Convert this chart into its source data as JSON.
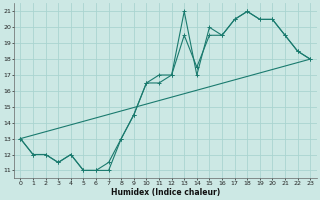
{
  "xlabel": "Humidex (Indice chaleur)",
  "bg_color": "#cce8e4",
  "grid_color": "#aad4d0",
  "line_color": "#1a7a6e",
  "xlim": [
    -0.5,
    23.5
  ],
  "ylim": [
    10.5,
    21.5
  ],
  "xticks": [
    0,
    1,
    2,
    3,
    4,
    5,
    6,
    7,
    8,
    9,
    10,
    11,
    12,
    13,
    14,
    15,
    16,
    17,
    18,
    19,
    20,
    21,
    22,
    23
  ],
  "yticks": [
    11,
    12,
    13,
    14,
    15,
    16,
    17,
    18,
    19,
    20,
    21
  ],
  "line1_x": [
    0,
    1,
    2,
    3,
    4,
    5,
    6,
    7,
    8,
    9,
    10,
    11,
    12,
    13,
    14,
    15,
    16,
    17,
    18,
    19,
    20,
    21,
    22,
    23
  ],
  "line1_y": [
    13.0,
    12.0,
    12.0,
    11.5,
    12.0,
    11.0,
    11.0,
    11.0,
    13.0,
    14.5,
    16.5,
    16.5,
    17.0,
    21.0,
    17.0,
    20.0,
    19.5,
    20.5,
    21.0,
    20.5,
    20.5,
    19.5,
    18.5,
    18.0
  ],
  "line2_x": [
    0,
    1,
    2,
    3,
    4,
    5,
    6,
    7,
    8,
    9,
    10,
    11,
    12,
    13,
    14,
    15,
    16,
    17,
    18,
    19,
    20,
    21,
    22,
    23
  ],
  "line2_y": [
    13.0,
    12.0,
    12.0,
    11.5,
    12.0,
    11.0,
    11.0,
    11.5,
    13.0,
    14.5,
    16.5,
    17.0,
    17.0,
    19.5,
    17.5,
    19.5,
    19.5,
    20.5,
    21.0,
    20.5,
    20.5,
    19.5,
    18.5,
    18.0
  ],
  "line3_x": [
    0,
    23
  ],
  "line3_y": [
    13.0,
    18.0
  ]
}
